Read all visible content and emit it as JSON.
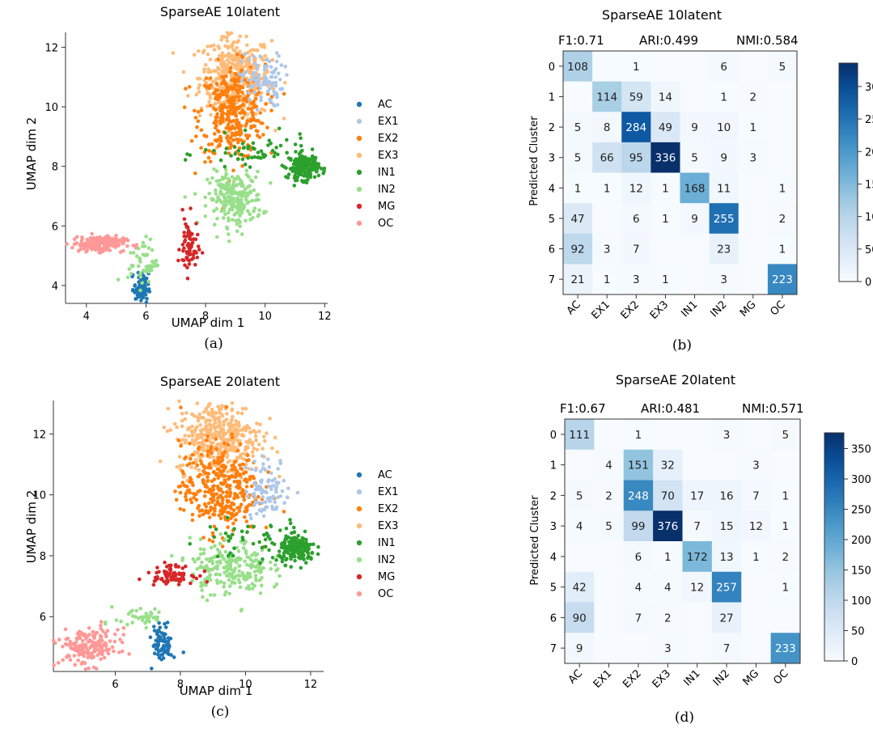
{
  "chart_data": [
    {
      "type": "scatter",
      "panel": "(a)",
      "title": "SparseAE 10latent",
      "xlabel": "UMAP dim 1",
      "ylabel": "UMAP dim 2",
      "xlim": [
        3.3,
        12.1
      ],
      "ylim": [
        3.4,
        12.5
      ],
      "xticks": [
        "4",
        "6",
        "8",
        "10",
        "12"
      ],
      "yticks": [
        "4",
        "6",
        "8",
        "10",
        "12"
      ],
      "legend": [
        "AC",
        "EX1",
        "EX2",
        "EX3",
        "IN1",
        "IN2",
        "MG",
        "OC"
      ],
      "clusters": [
        {
          "label": "EX3",
          "cx": 9.0,
          "cy": 11.0,
          "sx": 0.6,
          "sy": 0.7,
          "n": 420
        },
        {
          "label": "EX2",
          "cx": 8.9,
          "cy": 9.8,
          "sx": 0.55,
          "sy": 0.8,
          "n": 340
        },
        {
          "label": "EX1",
          "cx": 9.9,
          "cy": 10.9,
          "sx": 0.35,
          "sy": 0.45,
          "n": 90
        },
        {
          "label": "IN2",
          "cx": 9.0,
          "cy": 6.9,
          "sx": 0.45,
          "sy": 0.45,
          "n": 230
        },
        {
          "label": "IN1",
          "cx": 11.3,
          "cy": 8.0,
          "sx": 0.25,
          "sy": 0.22,
          "n": 170
        },
        {
          "label": "IN1",
          "cx": 9.7,
          "cy": 8.4,
          "sx": 0.9,
          "sy": 0.3,
          "n": 60
        },
        {
          "label": "MG",
          "cx": 7.45,
          "cy": 5.3,
          "sx": 0.15,
          "sy": 0.5,
          "n": 70
        },
        {
          "label": "OC",
          "cx": 4.4,
          "cy": 5.4,
          "sx": 0.45,
          "sy": 0.13,
          "n": 170
        },
        {
          "label": "AC",
          "cx": 5.85,
          "cy": 3.9,
          "sx": 0.12,
          "sy": 0.25,
          "n": 80
        },
        {
          "label": "IN2",
          "cx": 5.9,
          "cy": 4.8,
          "sx": 0.25,
          "sy": 0.4,
          "n": 50
        }
      ]
    },
    {
      "type": "heatmap",
      "panel": "(b)",
      "title": "SparseAE 10latent",
      "metrics": {
        "f1": "F1:0.71",
        "ari": "ARI:0.499",
        "nmi": "NMI:0.584"
      },
      "ylabel": "Predicted Cluster",
      "columns": [
        "AC",
        "EX1",
        "EX2",
        "EX3",
        "IN1",
        "IN2",
        "MG",
        "OC"
      ],
      "rows": [
        "0",
        "1",
        "2",
        "3",
        "4",
        "5",
        "6",
        "7"
      ],
      "vmax": 336,
      "colorbar_ticks": [
        0,
        50,
        100,
        150,
        200,
        250,
        300
      ],
      "matrix": [
        [
          108,
          0,
          1,
          0,
          0,
          6,
          0,
          5
        ],
        [
          0,
          114,
          59,
          14,
          0,
          1,
          2,
          0
        ],
        [
          5,
          8,
          284,
          49,
          9,
          10,
          1,
          0
        ],
        [
          5,
          66,
          95,
          336,
          5,
          9,
          3,
          0
        ],
        [
          1,
          1,
          12,
          1,
          168,
          11,
          0,
          1
        ],
        [
          47,
          0,
          6,
          1,
          9,
          255,
          0,
          2
        ],
        [
          92,
          3,
          7,
          0,
          0,
          23,
          0,
          1
        ],
        [
          21,
          1,
          3,
          1,
          0,
          3,
          0,
          223
        ]
      ]
    },
    {
      "type": "scatter",
      "panel": "(c)",
      "title": "SparseAE 20latent",
      "xlabel": "UMAP dim 1",
      "ylabel": "UMAP dim 2",
      "xlim": [
        4.1,
        12.4
      ],
      "ylim": [
        4.2,
        13.1
      ],
      "xticks": [
        "6",
        "8",
        "10",
        "12"
      ],
      "yticks": [
        "6",
        "8",
        "10",
        "12"
      ],
      "legend": [
        "AC",
        "EX1",
        "EX2",
        "EX3",
        "IN1",
        "IN2",
        "MG",
        "OC"
      ],
      "clusters": [
        {
          "label": "EX3",
          "cx": 9.2,
          "cy": 11.9,
          "sx": 0.65,
          "sy": 0.6,
          "n": 400
        },
        {
          "label": "EX2",
          "cx": 9.2,
          "cy": 10.2,
          "sx": 0.6,
          "sy": 0.75,
          "n": 360
        },
        {
          "label": "EX1",
          "cx": 10.7,
          "cy": 10.2,
          "sx": 0.35,
          "sy": 0.5,
          "n": 90
        },
        {
          "label": "IN2",
          "cx": 9.5,
          "cy": 7.6,
          "sx": 0.6,
          "sy": 0.45,
          "n": 220
        },
        {
          "label": "IN1",
          "cx": 11.6,
          "cy": 8.2,
          "sx": 0.28,
          "sy": 0.22,
          "n": 180
        },
        {
          "label": "IN1",
          "cx": 10.3,
          "cy": 8.5,
          "sx": 0.8,
          "sy": 0.35,
          "n": 50
        },
        {
          "label": "MG",
          "cx": 7.7,
          "cy": 7.4,
          "sx": 0.35,
          "sy": 0.15,
          "n": 80
        },
        {
          "label": "OC",
          "cx": 5.2,
          "cy": 5.0,
          "sx": 0.45,
          "sy": 0.3,
          "n": 190
        },
        {
          "label": "AC",
          "cx": 7.45,
          "cy": 5.1,
          "sx": 0.15,
          "sy": 0.3,
          "n": 80
        },
        {
          "label": "IN2",
          "cx": 6.8,
          "cy": 6.0,
          "sx": 0.4,
          "sy": 0.2,
          "n": 40
        }
      ]
    },
    {
      "type": "heatmap",
      "panel": "(d)",
      "title": "SparseAE 20latent",
      "metrics": {
        "f1": "F1:0.67",
        "ari": "ARI:0.481",
        "nmi": "NMI:0.571"
      },
      "ylabel": "Predicted Cluster",
      "columns": [
        "AC",
        "EX1",
        "EX2",
        "EX3",
        "IN1",
        "IN2",
        "MG",
        "OC"
      ],
      "rows": [
        "0",
        "1",
        "2",
        "3",
        "4",
        "5",
        "6",
        "7"
      ],
      "vmax": 376,
      "colorbar_ticks": [
        0,
        50,
        100,
        150,
        200,
        250,
        300,
        350
      ],
      "matrix": [
        [
          111,
          0,
          1,
          0,
          0,
          3,
          0,
          5
        ],
        [
          0,
          4,
          151,
          32,
          0,
          0,
          3,
          0
        ],
        [
          5,
          2,
          248,
          70,
          17,
          16,
          7,
          1
        ],
        [
          4,
          5,
          99,
          376,
          7,
          15,
          12,
          1
        ],
        [
          0,
          0,
          6,
          1,
          172,
          13,
          1,
          2
        ],
        [
          42,
          0,
          4,
          4,
          12,
          257,
          0,
          1
        ],
        [
          90,
          0,
          7,
          2,
          0,
          27,
          0,
          0
        ],
        [
          9,
          0,
          0,
          3,
          0,
          7,
          0,
          233
        ]
      ]
    }
  ],
  "label_colors": {
    "AC": "#1f77b4",
    "EX1": "#aec7e8",
    "EX2": "#ff7f0e",
    "EX3": "#ffbb78",
    "IN1": "#2ca02c",
    "IN2": "#98df8a",
    "MG": "#d62728",
    "OC": "#ff9896"
  }
}
